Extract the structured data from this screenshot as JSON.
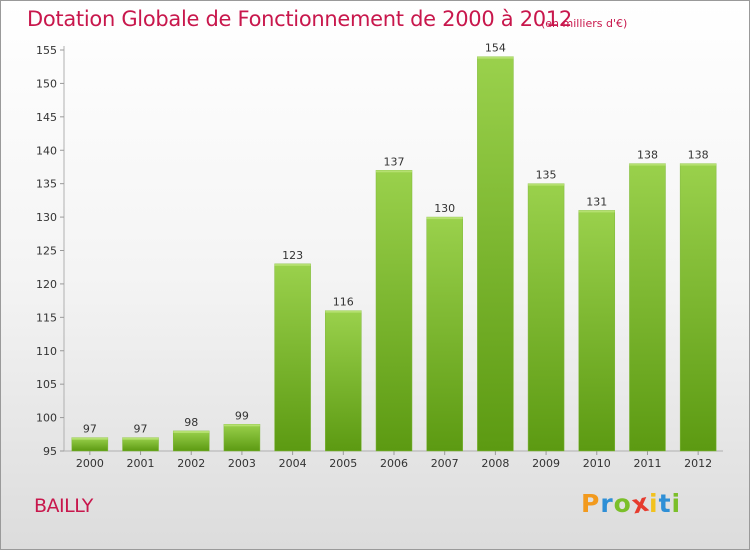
{
  "header": {
    "title": "Dotation Globale de Fonctionnement de 2000 à 2012",
    "unit_note": "(en milliers d'€)"
  },
  "footer": {
    "place": "BAILLY",
    "logo": "Proxiti",
    "logo_letters": [
      "P",
      "r",
      "o",
      "x",
      "i",
      "t",
      "i"
    ],
    "logo_colors": [
      "#f29a1e",
      "#2e8fd6",
      "#7bbf2a",
      "#e63b2e",
      "#f2c21e",
      "#2e8fd6",
      "#7bbf2a"
    ]
  },
  "chart_data": {
    "type": "bar",
    "title": "Dotation Globale de Fonctionnement de 2000 à 2012",
    "subtitle": "(en milliers d'€)",
    "xlabel": "",
    "ylabel": "",
    "categories": [
      "2000",
      "2001",
      "2002",
      "2003",
      "2004",
      "2005",
      "2006",
      "2007",
      "2008",
      "2009",
      "2010",
      "2011",
      "2012"
    ],
    "values": [
      97,
      97,
      98,
      99,
      123,
      116,
      137,
      130,
      154,
      135,
      131,
      138,
      138
    ],
    "ylim": [
      95,
      155
    ],
    "yticks": [
      95,
      100,
      105,
      110,
      115,
      120,
      125,
      130,
      135,
      140,
      145,
      150,
      155
    ],
    "grid": false,
    "legend": "none",
    "bar_color_top": "#9ad14c",
    "bar_color_bottom": "#5c9a12",
    "data_labels": true
  }
}
